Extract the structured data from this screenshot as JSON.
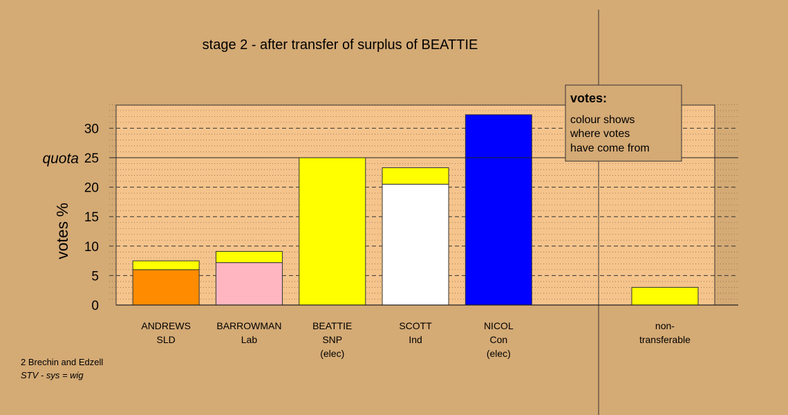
{
  "chart_data": {
    "type": "bar",
    "stacked": true,
    "title": "stage 2 - after transfer of surplus of BEATTIE",
    "ylabel": "votes %",
    "ylim": [
      0,
      34
    ],
    "yticks": [
      0,
      5,
      10,
      15,
      20,
      25,
      30
    ],
    "quota": {
      "label": "quota",
      "value": 25
    },
    "categories": [
      {
        "name": "ANDREWS",
        "sub": [
          "SLD"
        ],
        "segments": [
          {
            "value": 6.0,
            "color": "#ff8c00"
          },
          {
            "value": 1.5,
            "color": "#ffff00"
          }
        ]
      },
      {
        "name": "BARROWMAN",
        "sub": [
          "Lab"
        ],
        "segments": [
          {
            "value": 7.2,
            "color": "#ffb6c1"
          },
          {
            "value": 1.9,
            "color": "#ffff00"
          }
        ]
      },
      {
        "name": "BEATTIE",
        "sub": [
          "SNP",
          "(elec)"
        ],
        "segments": [
          {
            "value": 25.0,
            "color": "#ffff00"
          }
        ]
      },
      {
        "name": "SCOTT",
        "sub": [
          "Ind"
        ],
        "segments": [
          {
            "value": 20.5,
            "color": "#ffffff"
          },
          {
            "value": 2.8,
            "color": "#ffff00"
          }
        ]
      },
      {
        "name": "NICOL",
        "sub": [
          "Con",
          "(elec)"
        ],
        "segments": [
          {
            "value": 32.3,
            "color": "#0000ff"
          }
        ]
      },
      {
        "name": "",
        "sub": [],
        "segments": []
      },
      {
        "name": "non-",
        "sub": [
          "transferable"
        ],
        "segments": [
          {
            "value": 3.0,
            "color": "#ffff00"
          }
        ]
      }
    ],
    "legend": {
      "title": "votes:",
      "lines": [
        "colour shows",
        "where votes",
        "have come from"
      ]
    },
    "colors": {
      "background": "#d4aa75",
      "plot_bg": "#f5c48c"
    }
  },
  "footer": {
    "line1": "2 Brechin and Edzell",
    "line2": "STV - sys = wig"
  }
}
